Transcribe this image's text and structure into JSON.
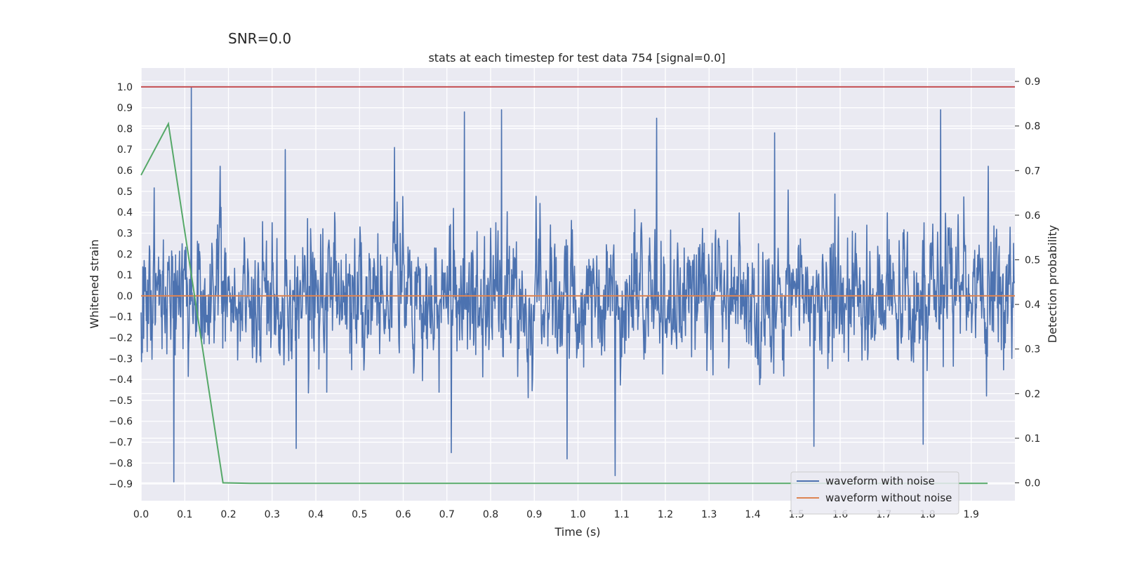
{
  "figure": {
    "suptitle": "SNR=0.0"
  },
  "chart_data": {
    "type": "line",
    "title": "stats at each timestep for test data 754 [signal=0.0]",
    "xlabel": "Time (s)",
    "ylabel": "Whitened strain",
    "y2label": "Detection probability",
    "xlim": [
      0.0,
      2.0
    ],
    "ylim": [
      -0.98,
      1.09
    ],
    "y2lim": [
      -0.04,
      0.93
    ],
    "x_ticks": [
      0.0,
      0.1,
      0.2,
      0.3,
      0.4,
      0.5,
      0.6,
      0.7,
      0.8,
      0.9,
      1.0,
      1.1,
      1.2,
      1.3,
      1.4,
      1.5,
      1.6,
      1.7,
      1.8,
      1.9
    ],
    "x_tick_labels": [
      "0.0",
      "0.1",
      "0.2",
      "0.3",
      "0.4",
      "0.5",
      "0.6",
      "0.7",
      "0.8",
      "0.9",
      "1.0",
      "1.1",
      "1.2",
      "1.3",
      "1.4",
      "1.5",
      "1.6",
      "1.7",
      "1.8",
      "1.9"
    ],
    "y_ticks": [
      1.0,
      0.9,
      0.8,
      0.7,
      0.6,
      0.5,
      0.4,
      0.3,
      0.2,
      0.1,
      0.0,
      -0.1,
      -0.2,
      -0.3,
      -0.4,
      -0.5,
      -0.6,
      -0.7,
      -0.8,
      -0.9
    ],
    "y_tick_labels": [
      "1.0",
      "0.9",
      "0.8",
      "0.7",
      "0.6",
      "0.5",
      "0.4",
      "0.3",
      "0.2",
      "0.1",
      "0.0",
      "−0.1",
      "−0.2",
      "−0.3",
      "−0.4",
      "−0.5",
      "−0.6",
      "−0.7",
      "−0.8",
      "−0.9"
    ],
    "y2_ticks": [
      0.9,
      0.8,
      0.7,
      0.6,
      0.5,
      0.4,
      0.3,
      0.2,
      0.1,
      0.0
    ],
    "y2_tick_labels": [
      "0.9",
      "0.8",
      "0.7",
      "0.6",
      "0.5",
      "0.4",
      "0.3",
      "0.2",
      "0.1",
      "0.0"
    ],
    "grid": true,
    "legend_position": "lower-right",
    "series": [
      {
        "name": "waveform with noise",
        "axis": "left",
        "color": "#4c72b0",
        "sample_rate_hz": 1000,
        "x_start": 0.0,
        "x_end": 2.0,
        "noise_std": 0.21,
        "peaks": [
          {
            "x": 0.115,
            "y": 1.0
          },
          {
            "x": 0.075,
            "y": -0.89
          },
          {
            "x": 0.74,
            "y": 0.88
          },
          {
            "x": 0.825,
            "y": 0.89
          },
          {
            "x": 1.18,
            "y": 0.85
          },
          {
            "x": 1.83,
            "y": 0.89
          },
          {
            "x": 1.085,
            "y": -0.86
          },
          {
            "x": 0.975,
            "y": -0.78
          },
          {
            "x": 0.355,
            "y": -0.73
          },
          {
            "x": 0.71,
            "y": -0.75
          },
          {
            "x": 1.54,
            "y": -0.72
          },
          {
            "x": 1.79,
            "y": -0.71
          },
          {
            "x": 0.58,
            "y": 0.71
          },
          {
            "x": 0.33,
            "y": 0.7
          },
          {
            "x": 1.45,
            "y": 0.78
          }
        ]
      },
      {
        "name": "waveform without noise",
        "axis": "left",
        "color": "#dd8452",
        "x": [
          0.0,
          2.0
        ],
        "y": [
          0.0,
          0.0
        ]
      },
      {
        "name": "",
        "axis": "right",
        "color": "#55a868",
        "x": [
          0.0,
          0.0625,
          0.1875,
          0.25,
          0.3125,
          1.9375
        ],
        "y": [
          0.69,
          0.805,
          0.0,
          -0.001,
          -0.001,
          -0.001
        ]
      },
      {
        "name": "",
        "axis": "left",
        "color": "#c44e52",
        "x": [
          0.0,
          2.0
        ],
        "y": [
          1.0,
          1.0
        ]
      }
    ]
  }
}
